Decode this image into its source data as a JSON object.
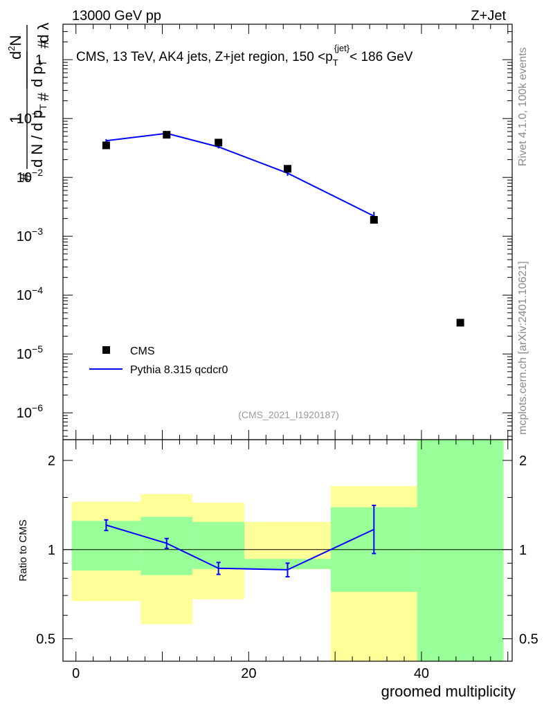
{
  "header": {
    "left": "13000 GeV pp",
    "right": "Z+Jet"
  },
  "side_labels": {
    "rivet": "Rivet 4.1.0,  100k events",
    "mcplots": "mcplots.cern.ch [arXiv:2401.10621]"
  },
  "chart_data": [
    {
      "type": "scatter",
      "panel": "main",
      "title": "CMS, 13 TeV, AK4 jets, Z+jet region, 150 <p_T^{jet}< 186 GeV",
      "title_parts": {
        "pre": "CMS, 13 TeV, AK4 jets, Z+jet region, 150 <p",
        "sub": "T",
        "sup": "{jet}",
        "post": "< 186 GeV"
      },
      "analysis_id": "(CMS_2021_I1920187)",
      "ylabel": "1/dN/dp_T # d^2N/dp_T # dλ",
      "ylabel_parts": {
        "one": "1",
        "hash": "#",
        "den": "d N / d p",
        "sub": "T",
        "num": "d",
        "sup": "2",
        "numN": "N",
        "dpt": "d p",
        "dl": "d λ"
      },
      "yscale": "log",
      "ylim": [
        3.5e-07,
        4
      ],
      "xlim": [
        -1.5,
        50.5
      ],
      "y_ticks": [
        {
          "value": 1e-06,
          "base": "10",
          "exp": "−6"
        },
        {
          "value": 1e-05,
          "base": "10",
          "exp": "−5"
        },
        {
          "value": 0.0001,
          "base": "10",
          "exp": "−4"
        },
        {
          "value": 0.001,
          "base": "10",
          "exp": "−3"
        },
        {
          "value": 0.01,
          "base": "10",
          "exp": "−2"
        },
        {
          "value": 0.1,
          "base": "10",
          "exp": "−1"
        },
        {
          "value": 1,
          "base": "1",
          "exp": ""
        }
      ],
      "legend": [
        {
          "label": "CMS",
          "style": "marker",
          "color": "#000000"
        },
        {
          "label": "Pythia 8.315 qcdcr0",
          "style": "line",
          "color": "#0000ff"
        }
      ],
      "series": [
        {
          "name": "CMS",
          "color": "#000000",
          "x": [
            3.5,
            10.5,
            16.5,
            24.5,
            34.5,
            44.5
          ],
          "y": [
            0.035,
            0.053,
            0.039,
            0.014,
            0.0019,
            3.4e-05
          ]
        },
        {
          "name": "Pythia 8.315 qcdcr0",
          "color": "#0000ff",
          "x": [
            3.5,
            10.5,
            16.5,
            24.5,
            34.5
          ],
          "y": [
            0.042,
            0.056,
            0.033,
            0.0118,
            0.0022
          ],
          "err_lo": [
            0.0395,
            0.053,
            0.031,
            0.0106,
            0.0018
          ],
          "err_hi": [
            0.0445,
            0.059,
            0.035,
            0.013,
            0.0026
          ]
        }
      ]
    },
    {
      "type": "line",
      "panel": "ratio",
      "ylabel": "Ratio to CMS",
      "xlabel": "groomed multiplicity",
      "ylim": [
        0.42,
        2.35
      ],
      "xlim": [
        -1.5,
        50.5
      ],
      "x_ticks": [
        0,
        20,
        40
      ],
      "y_ticks": [
        0.5,
        1,
        2
      ],
      "band_colors": {
        "stat": "#99ff99",
        "total": "#ffff99"
      },
      "bands": [
        {
          "x0": -0.5,
          "x1": 7.5,
          "green_lo": 0.85,
          "green_hi": 1.25,
          "yellow_lo": 0.67,
          "yellow_hi": 1.45
        },
        {
          "x0": 7.5,
          "x1": 13.5,
          "green_lo": 0.82,
          "green_hi": 1.29,
          "yellow_lo": 0.56,
          "yellow_hi": 1.54
        },
        {
          "x0": 13.5,
          "x1": 19.5,
          "green_lo": 0.86,
          "green_hi": 1.24,
          "yellow_lo": 0.68,
          "yellow_hi": 1.44
        },
        {
          "x0": 19.5,
          "x1": 29.5,
          "green_lo": 0.86,
          "green_hi": 0.93,
          "yellow_lo": 0.86,
          "yellow_hi": 1.24
        },
        {
          "x0": 29.5,
          "x1": 39.5,
          "green_lo": 0.72,
          "green_hi": 1.39,
          "yellow_lo": 0.42,
          "yellow_hi": 1.64
        },
        {
          "x0": 39.5,
          "x1": 49.5,
          "green_lo": 0.42,
          "green_hi": 2.35,
          "yellow_lo": 0.42,
          "yellow_hi": 2.35
        }
      ],
      "series": [
        {
          "name": "Pythia 8.315 qcdcr0 / CMS",
          "color": "#0000ff",
          "x": [
            3.5,
            10.5,
            16.5,
            24.5,
            34.5
          ],
          "y": [
            1.21,
            1.05,
            0.865,
            0.855,
            1.17
          ],
          "err_lo": [
            1.16,
            1.01,
            0.825,
            0.81,
            0.97
          ],
          "err_hi": [
            1.26,
            1.09,
            0.905,
            0.9,
            1.41
          ]
        }
      ]
    }
  ]
}
